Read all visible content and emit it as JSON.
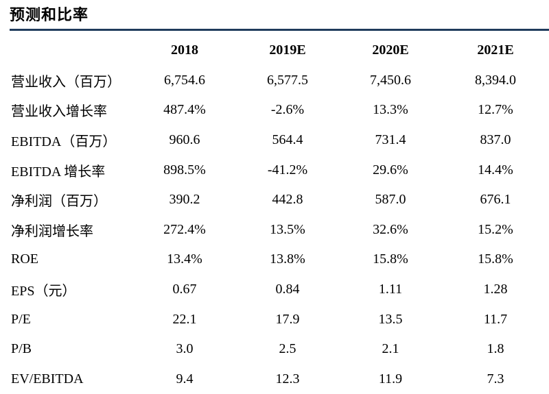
{
  "title": "预测和比率",
  "columns": [
    "",
    "2018",
    "2019E",
    "2020E",
    "2021E"
  ],
  "rows": [
    {
      "label": "营业收入（百万）",
      "values": [
        "6,754.6",
        "6,577.5",
        "7,450.6",
        "8,394.0"
      ]
    },
    {
      "label": "营业收入增长率",
      "values": [
        "487.4%",
        "-2.6%",
        "13.3%",
        "12.7%"
      ]
    },
    {
      "label": "EBITDA（百万）",
      "values": [
        "960.6",
        "564.4",
        "731.4",
        "837.0"
      ]
    },
    {
      "label": "EBITDA 增长率",
      "values": [
        "898.5%",
        "-41.2%",
        "29.6%",
        "14.4%"
      ]
    },
    {
      "label": "净利润（百万）",
      "values": [
        "390.2",
        "442.8",
        "587.0",
        "676.1"
      ]
    },
    {
      "label": "净利润增长率",
      "values": [
        "272.4%",
        "13.5%",
        "32.6%",
        "15.2%"
      ]
    },
    {
      "label": "ROE",
      "values": [
        "13.4%",
        "13.8%",
        "15.8%",
        "15.8%"
      ]
    },
    {
      "label": "EPS（元）",
      "values": [
        "0.67",
        "0.84",
        "1.11",
        "1.28"
      ]
    },
    {
      "label": "P/E",
      "values": [
        "22.1",
        "17.9",
        "13.5",
        "11.7"
      ]
    },
    {
      "label": "P/B",
      "values": [
        "3.0",
        "2.5",
        "2.1",
        "1.8"
      ]
    },
    {
      "label": "EV/EBITDA",
      "values": [
        "9.4",
        "12.3",
        "11.9",
        "7.3"
      ]
    }
  ],
  "colors": {
    "rule": "#1f3b5c",
    "text": "#000000",
    "background": "#ffffff"
  }
}
